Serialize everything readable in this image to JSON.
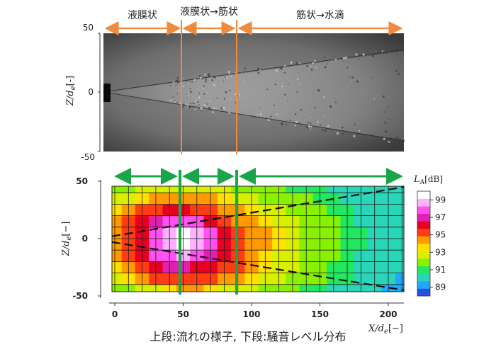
{
  "regimes": {
    "r1": "液膜状",
    "r2": "液膜状→筋状",
    "r3": "筋状→水滴"
  },
  "photo_panel": {
    "ylabel": "Z/d",
    "ylabel_sub": "e",
    "ylabel_unit": "[-]",
    "yticks": [
      "50",
      "0",
      "-50"
    ]
  },
  "contour_panel": {
    "ylabel": "Z/d",
    "ylabel_sub": "e",
    "ylabel_unit": "[−]",
    "xlabel": "X/d",
    "xlabel_sub": "e",
    "xlabel_unit": "[−]",
    "xticks": [
      "0",
      "50",
      "100",
      "150",
      "200"
    ],
    "yticks": [
      "50",
      "0",
      "-50"
    ]
  },
  "colorbar": {
    "label_main": "L",
    "label_sub": "A",
    "label_unit": "[dB]",
    "ticks": [
      "99",
      "97",
      "95",
      "93",
      "91",
      "89"
    ],
    "colors": [
      "#2a4fe0",
      "#20a8ff",
      "#2ad6b8",
      "#22e860",
      "#88f000",
      "#d8f000",
      "#ffe000",
      "#ff9a00",
      "#ff3c14",
      "#e80020",
      "#e020b0",
      "#ff50f0",
      "#ffb0ff",
      "#ffffff"
    ]
  },
  "caption": "上段:流れの様子, 下段:騒音レベル分布",
  "chart_data": {
    "type": "heatmap",
    "x_range": [
      0,
      210
    ],
    "y_range": [
      -45,
      45
    ],
    "xlim": [
      -5,
      210
    ],
    "ylim": [
      -50,
      50
    ],
    "colorbar_range": [
      88,
      100
    ],
    "colorbar_title": "LA [dB]",
    "x": [
      0,
      10,
      20,
      30,
      40,
      50,
      60,
      70,
      80,
      90,
      100,
      110,
      120,
      130,
      140,
      150,
      160,
      170,
      180,
      190,
      200,
      210
    ],
    "y": [
      -45,
      -35,
      -25,
      -15,
      -5,
      5,
      15,
      25,
      35,
      45
    ],
    "z": [
      [
        91.5,
        92.0,
        92.5,
        93.0,
        93.5,
        94.0,
        94.0,
        93.5,
        93.0,
        93.0,
        92.5,
        92.0,
        91.5,
        91.5,
        91.0,
        91.0,
        90.5,
        90.5,
        90.0,
        90.0,
        89.5,
        89.5
      ],
      [
        92.5,
        93.5,
        94.5,
        95.0,
        95.5,
        95.5,
        95.5,
        95.0,
        94.5,
        94.0,
        93.5,
        93.0,
        92.5,
        92.0,
        91.5,
        91.5,
        91.0,
        91.0,
        90.5,
        90.0,
        90.0,
        89.5
      ],
      [
        93.5,
        94.5,
        95.5,
        96.5,
        97.0,
        97.0,
        96.5,
        96.0,
        95.5,
        95.0,
        94.0,
        93.5,
        93.0,
        92.5,
        92.0,
        91.5,
        91.0,
        91.0,
        90.5,
        90.5,
        90.0,
        90.0
      ],
      [
        94.0,
        95.0,
        96.0,
        97.5,
        98.0,
        98.5,
        98.0,
        97.0,
        96.0,
        95.0,
        94.0,
        93.5,
        93.0,
        92.5,
        92.0,
        91.5,
        91.5,
        91.0,
        90.5,
        90.5,
        90.0,
        90.0
      ],
      [
        94.5,
        95.5,
        96.5,
        98.0,
        98.5,
        99.5,
        99.0,
        98.0,
        96.5,
        95.5,
        94.5,
        94.0,
        93.5,
        92.5,
        92.0,
        91.5,
        91.5,
        91.0,
        91.0,
        90.5,
        90.5,
        90.0
      ],
      [
        94.5,
        95.5,
        96.5,
        98.0,
        98.5,
        99.5,
        99.0,
        98.0,
        96.5,
        95.5,
        94.5,
        94.0,
        93.5,
        92.5,
        92.0,
        91.5,
        91.5,
        91.0,
        91.0,
        90.5,
        90.5,
        90.0
      ],
      [
        94.0,
        95.0,
        96.0,
        97.0,
        97.5,
        98.0,
        97.5,
        96.5,
        95.5,
        94.5,
        94.0,
        93.5,
        93.0,
        92.5,
        92.0,
        91.5,
        91.5,
        91.0,
        90.5,
        90.5,
        90.0,
        90.0
      ],
      [
        93.5,
        94.0,
        95.0,
        95.5,
        96.0,
        96.0,
        95.5,
        95.0,
        94.5,
        94.0,
        93.5,
        93.0,
        92.5,
        92.0,
        91.5,
        91.5,
        91.0,
        91.0,
        90.5,
        90.5,
        90.0,
        90.0
      ],
      [
        92.5,
        93.0,
        93.5,
        94.0,
        94.0,
        94.5,
        94.0,
        94.0,
        93.5,
        93.0,
        92.5,
        92.0,
        92.0,
        91.5,
        91.5,
        91.0,
        91.0,
        90.5,
        90.5,
        90.0,
        90.0,
        90.0
      ],
      [
        91.5,
        92.0,
        92.5,
        92.5,
        93.0,
        93.0,
        93.0,
        92.5,
        92.5,
        92.0,
        92.0,
        91.5,
        91.5,
        91.0,
        91.0,
        91.0,
        90.5,
        90.5,
        90.5,
        90.0,
        90.0,
        90.0
      ]
    ],
    "regime_boundaries_x": [
      50,
      90
    ],
    "spray_edges": [
      {
        "x": [
          0,
          210
        ],
        "y": [
          2,
          45
        ]
      },
      {
        "x": [
          0,
          210
        ],
        "y": [
          -3,
          -45
        ]
      }
    ],
    "xticks": [
      0,
      50,
      100,
      150,
      200
    ],
    "yticks": [
      50,
      0,
      -50
    ]
  }
}
